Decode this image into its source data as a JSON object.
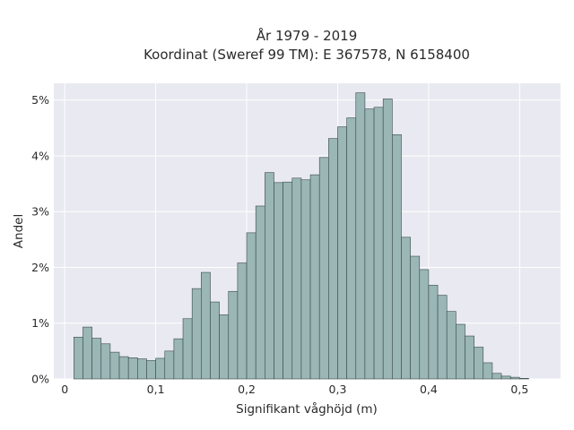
{
  "chart_data": {
    "type": "bar",
    "title_line1": "År 1979 - 2019",
    "title_line2": "Koordinat (Sweref 99 TM): E 367578, N 6158400",
    "xlabel": "Signifikant våghöjd (m)",
    "ylabel": "Andel",
    "xlim": [
      -0.012,
      0.545
    ],
    "ylim": [
      0,
      5.3
    ],
    "x_ticks": [
      0,
      0.1,
      0.2,
      0.3,
      0.4,
      0.5
    ],
    "x_tick_labels": [
      "0",
      "0,1",
      "0,2",
      "0,3",
      "0,4",
      "0,5"
    ],
    "y_ticks": [
      0,
      1,
      2,
      3,
      4,
      5
    ],
    "y_tick_labels": [
      "0%",
      "1%",
      "2%",
      "3%",
      "4%",
      "5%"
    ],
    "bin_start": 0.01,
    "bin_width": 0.01,
    "values": [
      0.75,
      0.93,
      0.73,
      0.63,
      0.48,
      0.4,
      0.38,
      0.36,
      0.33,
      0.37,
      0.5,
      0.72,
      1.08,
      1.62,
      1.91,
      1.38,
      1.15,
      1.57,
      2.08,
      2.62,
      3.1,
      3.7,
      3.52,
      3.53,
      3.6,
      3.57,
      3.66,
      3.97,
      4.31,
      4.52,
      4.68,
      5.13,
      4.84,
      4.87,
      5.02,
      4.38,
      2.54,
      2.2,
      1.96,
      1.68,
      1.5,
      1.21,
      0.98,
      0.77,
      0.57,
      0.29,
      0.1,
      0.05,
      0.03,
      0.01
    ],
    "grid": true,
    "colors": {
      "background": "#e9e9f1",
      "grid": "#ffffff",
      "bar_fill": "#9ab6b5",
      "bar_edge": "#3a4a4a"
    }
  }
}
